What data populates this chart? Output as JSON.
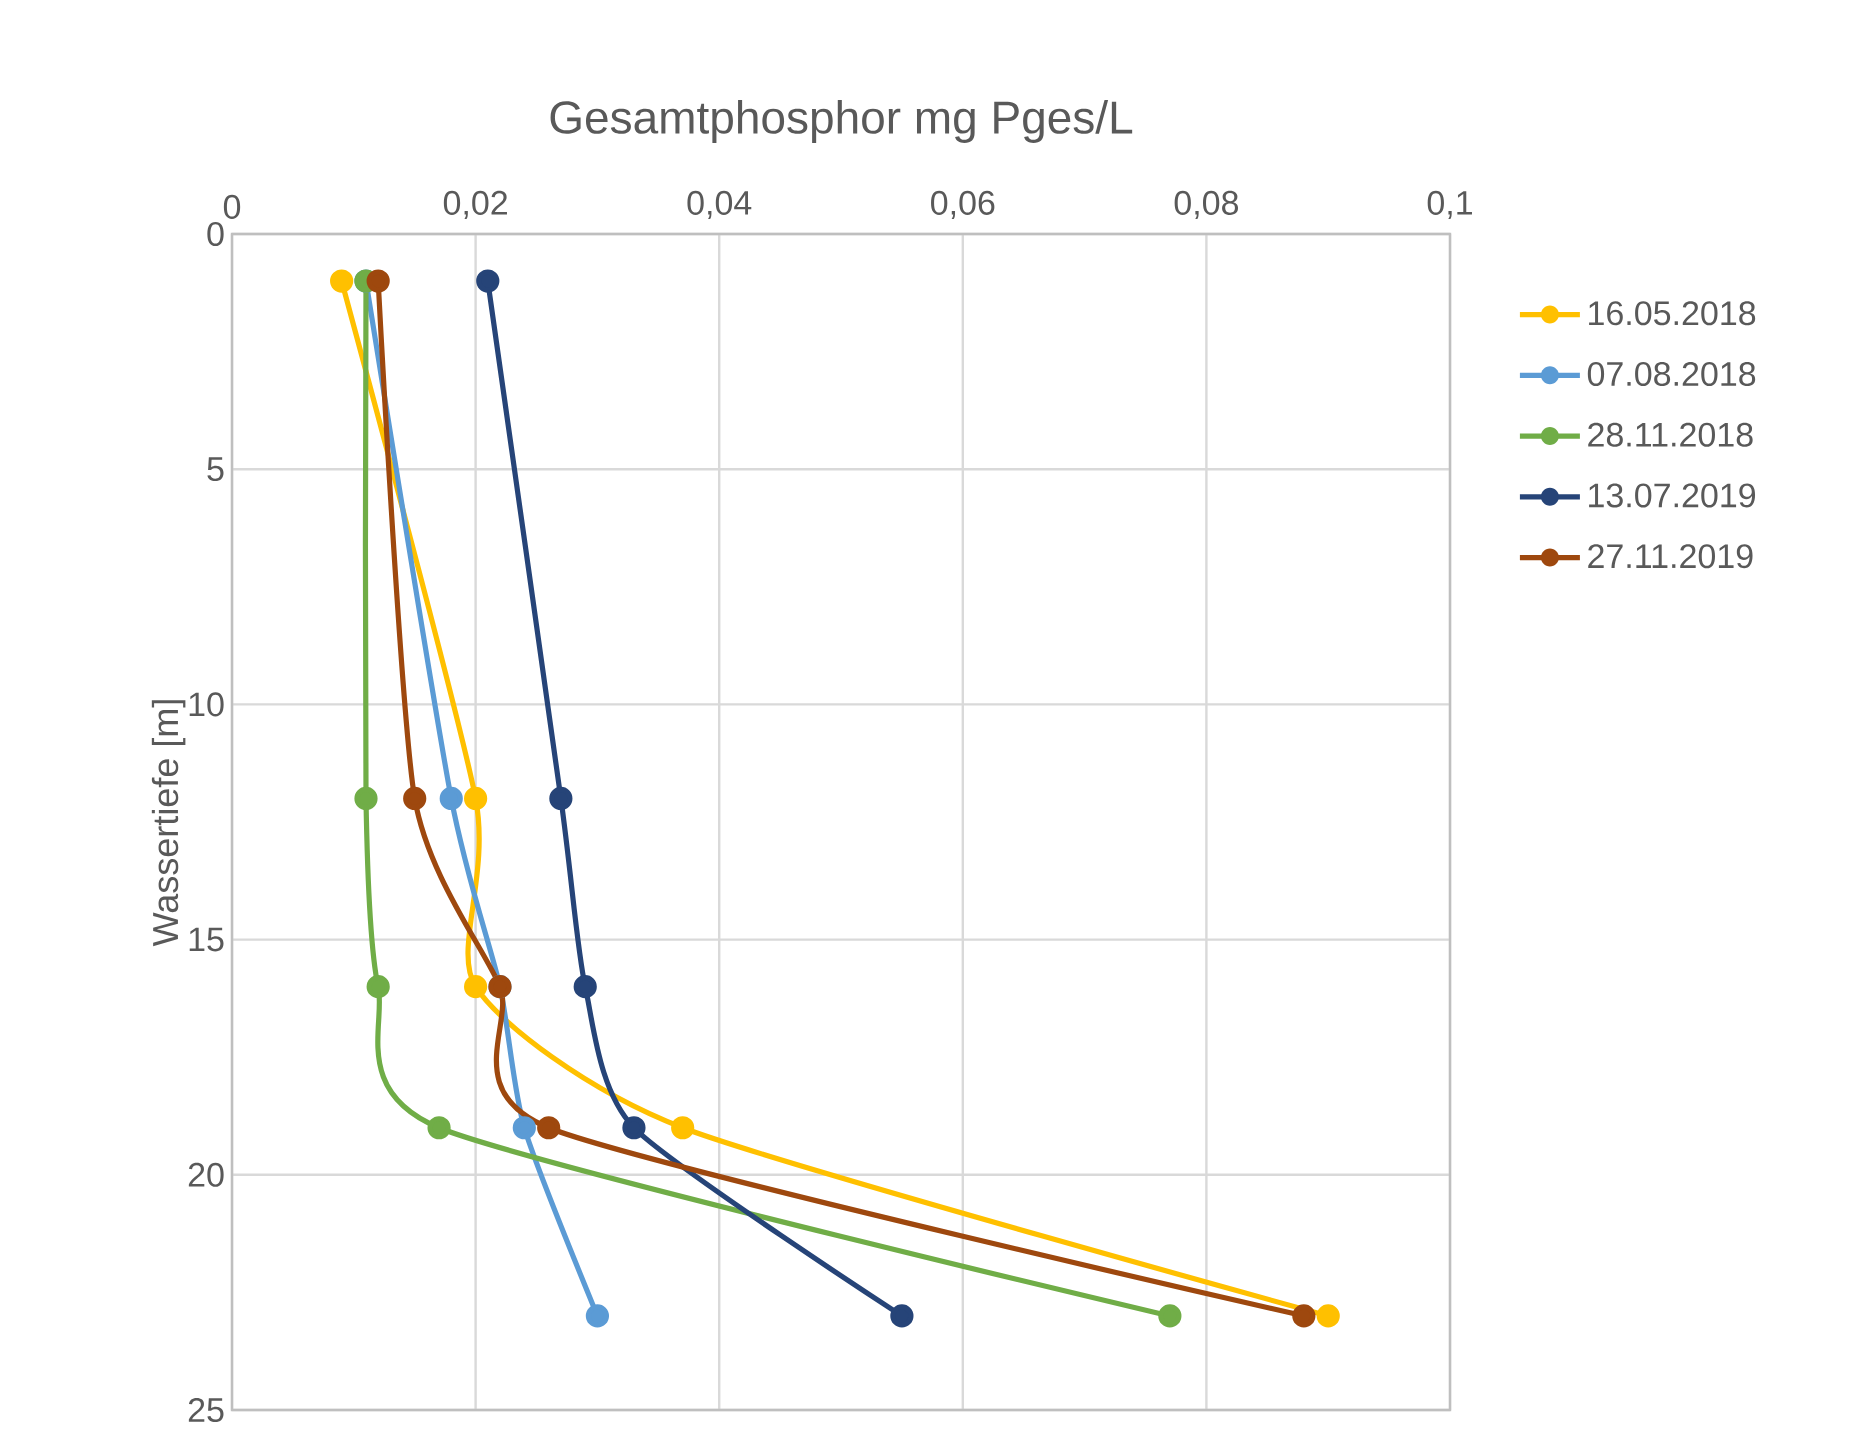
{
  "chart_data": {
    "type": "line",
    "title": "Gesamtphosphor  mg Pges/L",
    "ylabel": "Wassertiefe [m]",
    "xlim": [
      0,
      0.1
    ],
    "xticks": [
      0,
      {
        "value": 0.02,
        "label": "0,02"
      },
      {
        "value": 0.04,
        "label": "0,04"
      },
      {
        "value": 0.06,
        "label": "0,06"
      },
      {
        "value": 0.08,
        "label": "0,08"
      },
      {
        "value": 0.1,
        "label": "0,1"
      }
    ],
    "ylim": [
      25,
      0
    ],
    "yticks": [
      0,
      5,
      10,
      15,
      20,
      25
    ],
    "grid": true,
    "legend": "right",
    "marker": "circle",
    "line_style": "solid",
    "series": [
      {
        "name": "16.05.2018",
        "color": "#ffc000",
        "x": [
          0.009,
          0.02,
          0.02,
          0.037,
          0.09
        ],
        "values": [
          1,
          12,
          16,
          19,
          23
        ]
      },
      {
        "name": "07.08.2018",
        "color": "#5b9bd5",
        "x": [
          0.011,
          0.018,
          0.022,
          0.024,
          0.03
        ],
        "values": [
          1,
          12,
          16,
          19,
          23
        ]
      },
      {
        "name": "28.11.2018",
        "color": "#70ad47",
        "x": [
          0.011,
          0.011,
          0.012,
          0.017,
          0.077
        ],
        "values": [
          1,
          12,
          16,
          19,
          23
        ]
      },
      {
        "name": "13.07.2019",
        "color": "#264478",
        "x": [
          0.021,
          0.027,
          0.029,
          0.033,
          0.055
        ],
        "values": [
          1,
          12,
          16,
          19,
          23
        ]
      },
      {
        "name": "27.11.2019",
        "color": "#9e480e",
        "x": [
          0.012,
          0.015,
          0.022,
          0.026,
          0.088
        ],
        "values": [
          1,
          12,
          16,
          19,
          23
        ]
      }
    ]
  }
}
